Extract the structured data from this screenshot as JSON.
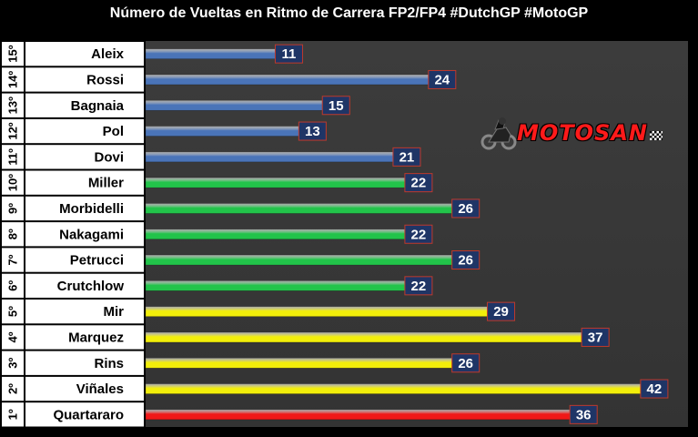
{
  "chart_data": {
    "type": "bar",
    "orientation": "horizontal",
    "title": "Número de Vueltas en Ritmo de Carrera FP2/FP4 #DutchGP #MotoGP",
    "ranks": [
      "15º",
      "14º",
      "13º",
      "12º",
      "11º",
      "10º",
      "9º",
      "8º",
      "7º",
      "6º",
      "5º",
      "4º",
      "3º",
      "2º",
      "1º"
    ],
    "categories": [
      "Aleix",
      "Rossi",
      "Bagnaia",
      "Pol",
      "Dovi",
      "Miller",
      "Morbidelli",
      "Nakagami",
      "Petrucci",
      "Crutchlow",
      "Mir",
      "Marquez",
      "Rins",
      "Viñales",
      "Quartararo"
    ],
    "values": [
      11,
      24,
      15,
      13,
      21,
      22,
      26,
      22,
      26,
      22,
      29,
      37,
      26,
      42,
      36
    ],
    "bar_colors": [
      "#4a74b8",
      "#4a74b8",
      "#4a74b8",
      "#4a74b8",
      "#4a74b8",
      "#22c44a",
      "#22c44a",
      "#22c44a",
      "#22c44a",
      "#22c44a",
      "#f2ee0a",
      "#f2ee0a",
      "#f2ee0a",
      "#f2ee0a",
      "#f01818"
    ],
    "xlim": [
      0,
      44
    ],
    "grid": false,
    "legend": "none"
  },
  "logo": {
    "text": "MOTOSAN",
    "icon": "motorcycle-icon"
  },
  "colors": {
    "background": "#000000",
    "plot_background": "#383838",
    "label_background": "#ffffff",
    "value_box_background": "#1f3566",
    "value_box_border": "#c0392b"
  }
}
